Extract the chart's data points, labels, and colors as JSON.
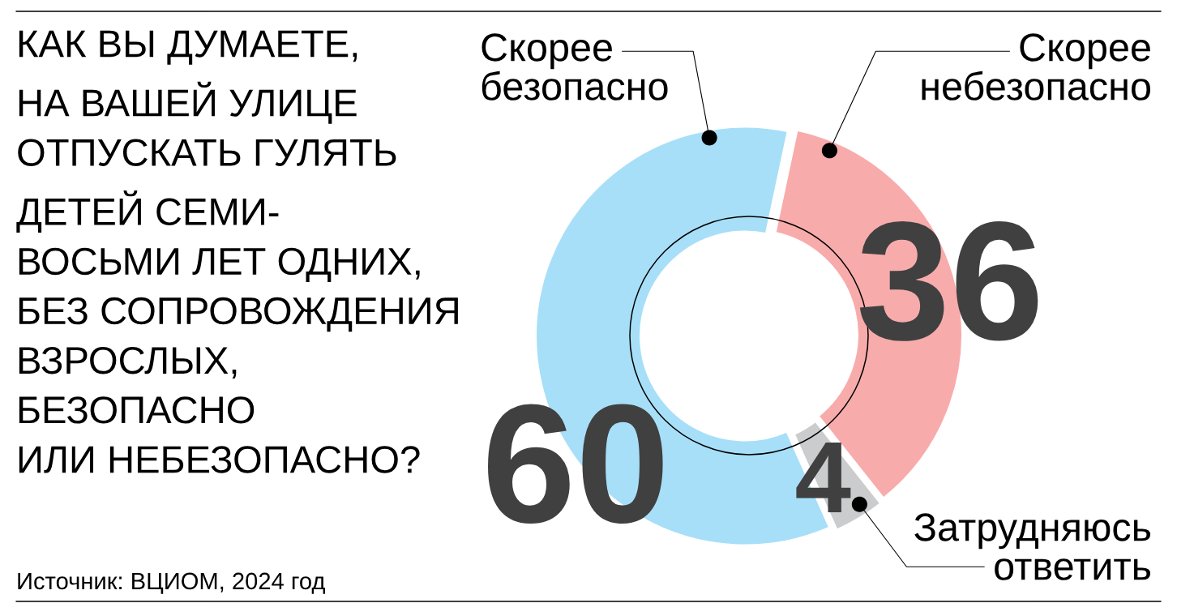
{
  "chart_data": {
    "type": "donut",
    "title": "КАК ВЫ ДУМАЕТЕ,\nНА ВАШЕЙ УЛИЦЕ\nОТПУСКАТЬ ГУЛЯТЬ\nДЕТЕЙ СЕМИ-\nВОСЬМИ ЛЕТ ОДНИХ,\nБЕЗ СОПРОВОЖДЕНИЯ\nВЗРОСЛЫХ,\nБЕЗОПАСНО\nИЛИ НЕБЕЗОПАСНО?",
    "categories": [
      "Скорее\nбезопасно",
      "Скорее\nнебезопасно",
      "Затрудняюсь\nответить"
    ],
    "values": [
      60,
      36,
      4
    ],
    "colors": [
      "#a7dff8",
      "#f7acab",
      "#cbcccd"
    ],
    "data_labels": true,
    "annotations": [
      "Источник: ВЦИОМ, 2024 год"
    ]
  }
}
